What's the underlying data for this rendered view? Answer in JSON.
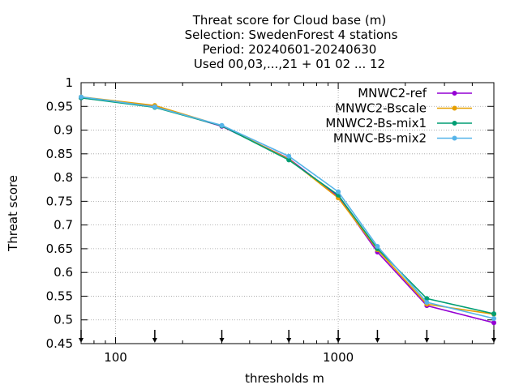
{
  "chart_data": {
    "type": "line",
    "title_lines": [
      "Threat score  for Cloud base (m)",
      "Selection: SwedenForest      4 stations",
      "Period: 20240601-20240630",
      "Used 00,03,...,21 + 01 02 ... 12"
    ],
    "xlabel": "thresholds m",
    "ylabel": "Threat score",
    "x_scale": "log",
    "xlim": [
      70,
      5000
    ],
    "ylim": [
      0.45,
      1.0
    ],
    "x_ticks": [
      100,
      1000
    ],
    "x_tick_labels": [
      "100",
      "1000"
    ],
    "y_ticks": [
      0.45,
      0.5,
      0.55,
      0.6,
      0.65,
      0.7,
      0.75,
      0.8,
      0.85,
      0.9,
      0.95,
      1.0
    ],
    "y_tick_labels": [
      "0.45",
      "0.5",
      "0.55",
      "0.6",
      "0.65",
      "0.7",
      "0.75",
      "0.8",
      "0.85",
      "0.9",
      "0.95",
      "1"
    ],
    "grid": true,
    "legend_position": "top-right",
    "threshold_markers": [
      70,
      150,
      300,
      600,
      1000,
      1500,
      2500,
      5000
    ],
    "x": [
      70,
      150,
      300,
      600,
      1000,
      1500,
      2500,
      5000
    ],
    "series": [
      {
        "name": "MNWC2-ref",
        "color": "#9400d3",
        "values": [
          0.968,
          0.95,
          0.908,
          0.84,
          0.76,
          0.643,
          0.53,
          0.494
        ]
      },
      {
        "name": "MNWC2-Bscale",
        "color": "#e69f00",
        "values": [
          0.97,
          0.952,
          0.909,
          0.839,
          0.757,
          0.648,
          0.533,
          0.512
        ]
      },
      {
        "name": "MNWC2-Bs-mix1",
        "color": "#009e73",
        "values": [
          0.968,
          0.948,
          0.909,
          0.837,
          0.763,
          0.65,
          0.545,
          0.513
        ]
      },
      {
        "name": "MNWC-Bs-mix2",
        "color": "#56b4e9",
        "values": [
          0.97,
          0.949,
          0.91,
          0.845,
          0.77,
          0.655,
          0.537,
          0.503
        ]
      }
    ]
  }
}
